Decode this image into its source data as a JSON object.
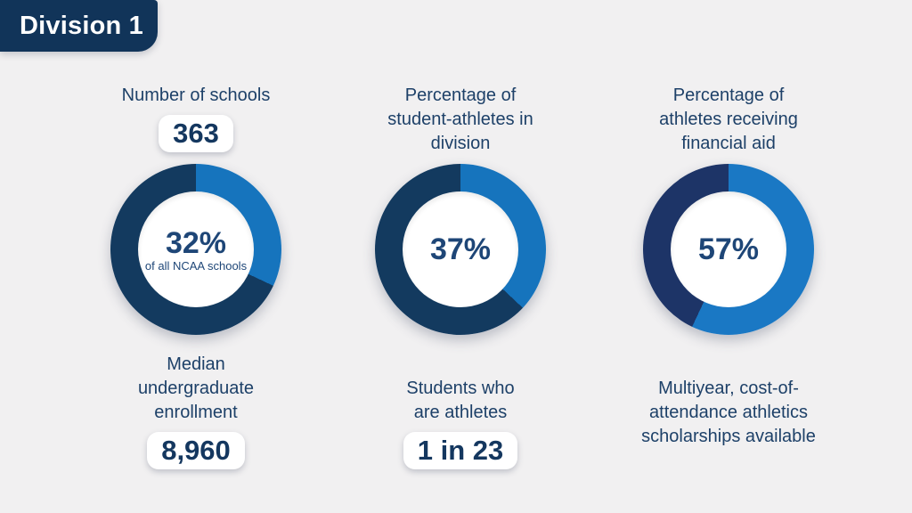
{
  "badge": {
    "label": "Division 1"
  },
  "theme": {
    "background": "#f1f0f1",
    "badge_bg": "#113459",
    "label_color": "#1d4068",
    "value_color": "#14375f",
    "pill_bg": "#ffffff",
    "blue": "#1674bd",
    "navy": "#133a5f",
    "navy_alt": "#1d3467"
  },
  "columns": [
    {
      "top_label": "Number of schools",
      "top_value": "363",
      "donut": {
        "percent": 32,
        "center_value": "32%",
        "center_caption": "of all NCAA schools",
        "blue_color": "#1674bd",
        "dark_color": "#133a5f"
      },
      "bottom_label": "Median undergraduate enrollment",
      "bottom_value": "8,960"
    },
    {
      "top_label": "Percentage of student-athletes in division",
      "donut": {
        "percent": 37,
        "center_value": "37%",
        "center_caption": "",
        "blue_color": "#1674bd",
        "dark_color": "#133a5f"
      },
      "bottom_label": "Students who are athletes",
      "bottom_value": "1 in 23"
    },
    {
      "top_label": "Percentage of athletes receiving financial aid",
      "donut": {
        "percent": 57,
        "center_value": "57%",
        "center_caption": "",
        "blue_color": "#1a78c4",
        "dark_color": "#1d3467"
      },
      "bottom_label": "Multiyear, cost-of-attendance athletics scholarships available",
      "bottom_value": ""
    }
  ],
  "chart_data": [
    {
      "type": "pie",
      "title": "Number of schools",
      "values": [
        32,
        68
      ],
      "colors": [
        "#1674bd",
        "#133a5f"
      ],
      "center_text": "32%",
      "center_caption": "of all NCAA schools"
    },
    {
      "type": "pie",
      "title": "Percentage of student-athletes in division",
      "values": [
        37,
        63
      ],
      "colors": [
        "#1674bd",
        "#133a5f"
      ],
      "center_text": "37%"
    },
    {
      "type": "pie",
      "title": "Percentage of athletes receiving financial aid",
      "values": [
        57,
        43
      ],
      "colors": [
        "#1a78c4",
        "#1d3467"
      ],
      "center_text": "57%"
    }
  ]
}
